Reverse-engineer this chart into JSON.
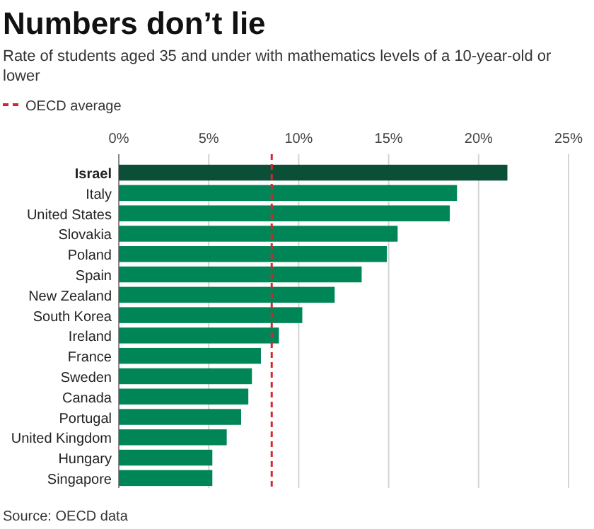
{
  "chart_data": {
    "type": "bar",
    "orientation": "horizontal",
    "title": "Numbers don’t lie",
    "subtitle": "Rate of students aged 35 and under with mathematics levels of a 10-year-old or lower",
    "categories": [
      "Israel",
      "Italy",
      "United States",
      "Slovakia",
      "Poland",
      "Spain",
      "New Zealand",
      "South Korea",
      "Ireland",
      "France",
      "Sweden",
      "Canada",
      "Portugal",
      "United Kingdom",
      "Hungary",
      "Singapore"
    ],
    "values": [
      21.6,
      18.8,
      18.4,
      15.5,
      14.9,
      13.5,
      12.0,
      10.2,
      8.9,
      7.9,
      7.4,
      7.2,
      6.8,
      6.0,
      5.2,
      5.2
    ],
    "colors": [
      "#0b4f36",
      "#008556",
      "#008556",
      "#008556",
      "#008556",
      "#008556",
      "#008556",
      "#008556",
      "#008556",
      "#008556",
      "#008556",
      "#008556",
      "#008556",
      "#008556",
      "#008556",
      "#008556"
    ],
    "xlim": [
      0,
      25
    ],
    "xticks": [
      {
        "value": 0,
        "label": "0%"
      },
      {
        "value": 5,
        "label": "5%"
      },
      {
        "value": 10,
        "label": "10%"
      },
      {
        "value": 15,
        "label": "15%"
      },
      {
        "value": 20,
        "label": "20%"
      },
      {
        "value": 25,
        "label": "25%"
      }
    ],
    "ref_lines": [
      {
        "axis": "x",
        "value": 8.5,
        "label": "OECD average",
        "color": "#d7262e",
        "line_style": "dashed"
      }
    ],
    "grid": "x",
    "legend": "top left",
    "annotations": [
      "Source: OECD data"
    ]
  }
}
